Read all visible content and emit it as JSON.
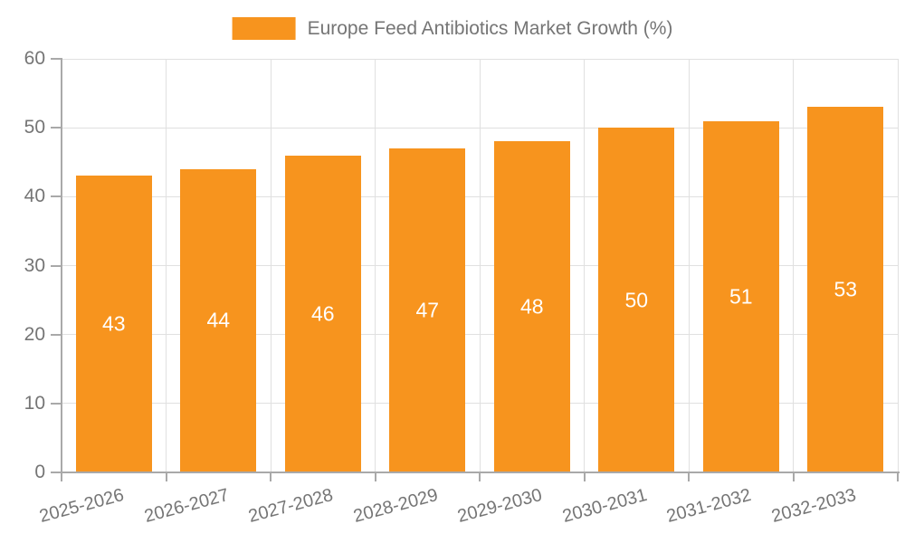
{
  "chart_data": {
    "type": "bar",
    "title": "Europe Feed Antibiotics Market Growth (%)",
    "categories": [
      "2025-2026",
      "2026-2027",
      "2027-2028",
      "2028-2029",
      "2029-2030",
      "2030-2031",
      "2031-2032",
      "2032-2033"
    ],
    "series": [
      {
        "name": "Europe Feed Antibiotics Market Growth (%)",
        "values": [
          43,
          44,
          46,
          47,
          48,
          50,
          51,
          53
        ]
      }
    ],
    "bar_labels": [
      "43",
      "44",
      "46",
      "47",
      "48",
      "50",
      "51",
      "53"
    ],
    "xlabel": "",
    "ylabel": "",
    "ylim": [
      0,
      60
    ],
    "yticks": [
      0,
      10,
      20,
      30,
      40,
      50,
      60
    ],
    "grid": "on",
    "legend_position": "top-center",
    "x_label_rotation_deg": -15,
    "colors": {
      "bar": "#F7941E",
      "bar_value_text": "#FFFFFF",
      "axis_text": "#757575",
      "gridline": "#E0E0E0",
      "axis_line": "#A9A9A9",
      "background": "#FFFFFF"
    }
  }
}
